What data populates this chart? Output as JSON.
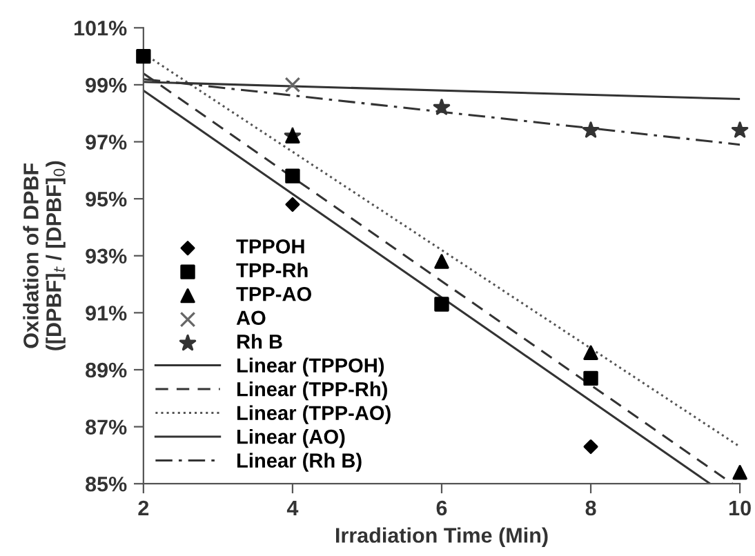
{
  "chart_data": {
    "type": "scatter",
    "xlabel": "Irradiation Time (Min)",
    "ylabel": "Oxidation of DPBF\n([DPBF]$_{t}$ / [DPBF]$_{0}$)",
    "x": [
      2,
      4,
      6,
      8,
      10
    ],
    "xlim": [
      2,
      10
    ],
    "xticks": [
      2,
      4,
      6,
      8,
      10
    ],
    "ylim": [
      85,
      101
    ],
    "yticks": [
      {
        "value": 85,
        "label": "85%"
      },
      {
        "value": 87,
        "label": "87%"
      },
      {
        "value": 89,
        "label": "89%"
      },
      {
        "value": 91,
        "label": "91%"
      },
      {
        "value": 93,
        "label": "93%"
      },
      {
        "value": 95,
        "label": "95%"
      },
      {
        "value": 97,
        "label": "97%"
      },
      {
        "value": 99,
        "label": "99%"
      },
      {
        "value": 101,
        "label": "101%"
      }
    ],
    "grid": false,
    "legend": "bottom left",
    "series": [
      {
        "name": "TPPOH",
        "color": "#000000",
        "marker": "diamond",
        "values": [
          null,
          94.8,
          null,
          86.3,
          null
        ]
      },
      {
        "name": "TPP-Rh",
        "color": "#000000",
        "marker": "square",
        "values": [
          100.0,
          95.8,
          91.3,
          88.7,
          null
        ]
      },
      {
        "name": "TPP-AO",
        "color": "#000000",
        "marker": "triangle",
        "values": [
          null,
          97.2,
          92.8,
          89.6,
          85.4
        ]
      },
      {
        "name": "AO",
        "color": "#666666",
        "marker": "cross",
        "values": [
          null,
          99.0,
          null,
          null,
          null
        ]
      },
      {
        "name": "Rh B",
        "color": "#333333",
        "marker": "star",
        "values": [
          null,
          97.2,
          98.2,
          97.4,
          97.4
        ]
      },
      {
        "name": "Linear (TPPOH)",
        "type": "line",
        "color": "#333333",
        "line_style": "solid",
        "marker": "none",
        "x": [
          2,
          9.6
        ],
        "values": [
          98.8,
          85.0
        ]
      },
      {
        "name": "Linear (TPP-Rh)",
        "type": "line",
        "color": "#333333",
        "line_style": "dashed",
        "marker": "none",
        "x": [
          2,
          9.9
        ],
        "values": [
          99.4,
          85.0
        ]
      },
      {
        "name": "Linear (TPP-AO)",
        "type": "line",
        "color": "#555555",
        "line_style": "dotted",
        "marker": "none",
        "x": [
          2,
          10
        ],
        "values": [
          100.1,
          86.3
        ]
      },
      {
        "name": "Linear (AO)",
        "type": "line",
        "color": "#333333",
        "line_style": "solid",
        "marker": "none",
        "x": [
          2,
          10
        ],
        "values": [
          99.1,
          98.5
        ]
      },
      {
        "name": "Linear (Rh B)",
        "type": "line",
        "color": "#333333",
        "line_style": "dashdot",
        "marker": "none",
        "x": [
          2,
          10
        ],
        "values": [
          99.2,
          96.9
        ]
      }
    ]
  }
}
